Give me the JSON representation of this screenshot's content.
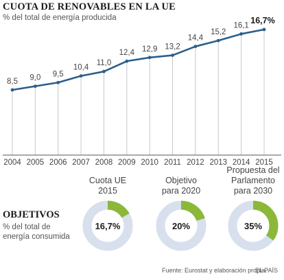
{
  "header": {
    "title": "CUOTA DE RENOVABLES EN LA UE",
    "subtitle": "% del total de energía producida"
  },
  "chart_data": [
    {
      "type": "line",
      "title": "CUOTA DE RENOVABLES EN LA UE",
      "subtitle": "% del total de energía producida",
      "x": [
        "2004",
        "2005",
        "2006",
        "2007",
        "2008",
        "2009",
        "2010",
        "2011",
        "2012",
        "2013",
        "2014",
        "2015"
      ],
      "values": [
        8.5,
        9.0,
        9.5,
        10.4,
        11.0,
        12.4,
        12.9,
        13.2,
        14.4,
        15.2,
        16.1,
        16.7
      ],
      "value_labels": [
        "8,5",
        "9,0",
        "9,5",
        "10,4",
        "11,0",
        "12,4",
        "12,9",
        "13,2",
        "14,4",
        "15,2",
        "16,1",
        "16,7%"
      ],
      "ylim": [
        0,
        17
      ],
      "grid": "vertical",
      "line_color": "#2a5f8c"
    },
    {
      "type": "pie",
      "title": "OBJETIVOS",
      "subtitle": "% del total de energía consumida",
      "items": [
        {
          "label_lines": [
            "Cuota UE",
            "2015"
          ],
          "value": 16.7,
          "value_label": "16,7%"
        },
        {
          "label_lines": [
            "Objetivo",
            "para 2020"
          ],
          "value": 20,
          "value_label": "20%"
        },
        {
          "label_lines": [
            "Propuesta del",
            "Parlamento",
            "para 2030"
          ],
          "value": 35,
          "value_label": "35%"
        }
      ],
      "fill_color": "#8cb83a",
      "track_color": "#d7e0ec"
    }
  ],
  "objetivos": {
    "title": "OBJETIVOS",
    "subtitle": "% del total de energía consumida"
  },
  "footer": {
    "source": "Fuente: Eurostat y elaboración propia.",
    "brand": "EL PAÍS"
  }
}
